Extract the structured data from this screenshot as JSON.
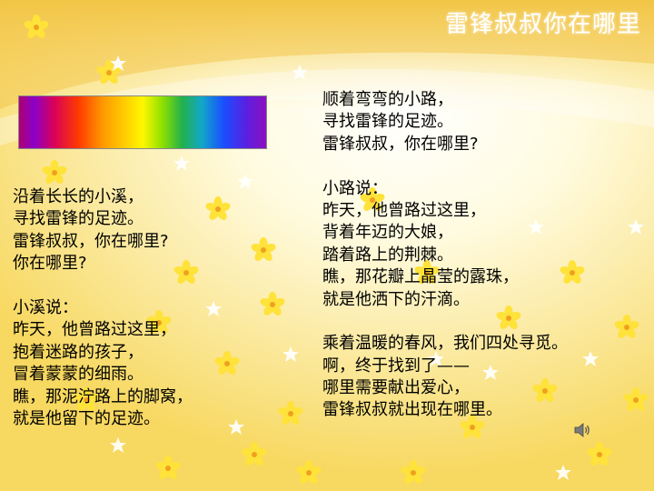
{
  "title": "雷锋叔叔你在哪里",
  "icons": {
    "audio": "speaker-icon",
    "decoration": "flower-icon"
  },
  "colors": {
    "title": "#ffffff",
    "text": "#000000",
    "background": "#fdf6c8"
  },
  "left_column": [
    "沿着长长的小溪，",
    "寻找雷锋的足迹。",
    "雷锋叔叔，你在哪里?",
    "你在哪里?",
    "",
    "小溪说：",
    "昨天，他曾路过这里，",
    "抱着迷路的孩子，",
    "冒着蒙蒙的细雨。",
    "瞧，那泥泞路上的脚窝，",
    "就是他留下的足迹。"
  ],
  "right_column": [
    "顺着弯弯的小路，",
    "寻找雷锋的足迹。",
    "雷锋叔叔，你在哪里?",
    "",
    "小路说：",
    "昨天，他曾路过这里，",
    "背着年迈的大娘，",
    "踏着路上的荆棘。",
    "瞧，那花瓣上晶莹的露珠，",
    "就是他洒下的汗滴。",
    "",
    "乘着温暖的春风，我们四处寻觅。",
    "啊，终于找到了——",
    "哪里需要献出爱心，",
    "雷锋叔叔就出现在哪里。"
  ]
}
